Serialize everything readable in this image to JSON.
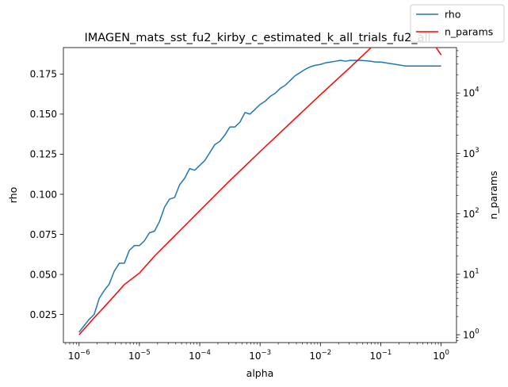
{
  "chart_data": {
    "type": "line",
    "title": "IMAGEN_mats_sst_fu2_kirby_c_estimated_k_all_trials_fu2_all",
    "xlabel": "alpha",
    "ylabel_left": "rho",
    "ylabel_right": "n_params",
    "x_scale": "log",
    "xlim": [
      5.5e-07,
      1.8
    ],
    "ylim_left": [
      0.0075,
      0.1915
    ],
    "ylim_right_log10": [
      -0.13,
      4.75
    ],
    "x_ticks": [
      {
        "value": 1e-06,
        "base": "10",
        "exp": "−6"
      },
      {
        "value": 1e-05,
        "base": "10",
        "exp": "−5"
      },
      {
        "value": 0.0001,
        "base": "10",
        "exp": "−4"
      },
      {
        "value": 0.001,
        "base": "10",
        "exp": "−3"
      },
      {
        "value": 0.01,
        "base": "10",
        "exp": "−2"
      },
      {
        "value": 0.1,
        "base": "10",
        "exp": "−1"
      },
      {
        "value": 1,
        "base": "10",
        "exp": "0"
      }
    ],
    "y_left_ticks": [
      {
        "value": 0.025,
        "label": "0.025"
      },
      {
        "value": 0.05,
        "label": "0.050"
      },
      {
        "value": 0.075,
        "label": "0.075"
      },
      {
        "value": 0.1,
        "label": "0.100"
      },
      {
        "value": 0.125,
        "label": "0.125"
      },
      {
        "value": 0.15,
        "label": "0.150"
      },
      {
        "value": 0.175,
        "label": "0.175"
      }
    ],
    "y_right_ticks": [
      {
        "value": 1,
        "base": "10",
        "exp": "0"
      },
      {
        "value": 10,
        "base": "10",
        "exp": "1"
      },
      {
        "value": 100,
        "base": "10",
        "exp": "2"
      },
      {
        "value": 1000,
        "base": "10",
        "exp": "3"
      },
      {
        "value": 10000,
        "base": "10",
        "exp": "4"
      }
    ],
    "legend": {
      "placement": "top-right"
    },
    "series": [
      {
        "name": "rho",
        "color": "#1f77b4",
        "axis": "left",
        "log10_x": [
          -6.0,
          -5.917,
          -5.833,
          -5.75,
          -5.667,
          -5.583,
          -5.5,
          -5.417,
          -5.333,
          -5.25,
          -5.167,
          -5.083,
          -5.0,
          -4.917,
          -4.833,
          -4.75,
          -4.667,
          -4.583,
          -4.5,
          -4.417,
          -4.333,
          -4.25,
          -4.167,
          -4.083,
          -4.0,
          -3.917,
          -3.833,
          -3.75,
          -3.667,
          -3.583,
          -3.5,
          -3.417,
          -3.333,
          -3.25,
          -3.167,
          -3.083,
          -3.0,
          -2.917,
          -2.833,
          -2.75,
          -2.667,
          -2.583,
          -2.5,
          -2.417,
          -2.333,
          -2.25,
          -2.167,
          -2.083,
          -2.0,
          -1.917,
          -1.833,
          -1.75,
          -1.667,
          -1.583,
          -1.5,
          -1.417,
          -1.333,
          -1.25,
          -1.167,
          -1.083,
          -1.0,
          -0.917,
          -0.833,
          -0.75,
          -0.667,
          -0.583,
          -0.5,
          -0.417,
          -0.333,
          -0.25,
          -0.167,
          -0.083,
          0.0
        ],
        "values": [
          0.014,
          0.018,
          0.022,
          0.025,
          0.035,
          0.04,
          0.044,
          0.052,
          0.057,
          0.057,
          0.065,
          0.068,
          0.068,
          0.071,
          0.076,
          0.077,
          0.083,
          0.092,
          0.097,
          0.098,
          0.106,
          0.11,
          0.116,
          0.115,
          0.118,
          0.121,
          0.126,
          0.131,
          0.133,
          0.137,
          0.142,
          0.142,
          0.145,
          0.151,
          0.15,
          0.153,
          0.156,
          0.158,
          0.161,
          0.163,
          0.166,
          0.168,
          0.171,
          0.174,
          0.176,
          0.178,
          0.1795,
          0.1805,
          0.181,
          0.182,
          0.1825,
          0.183,
          0.1835,
          0.183,
          0.1835,
          0.1835,
          0.1835,
          0.1833,
          0.183,
          0.1825,
          0.1825,
          0.182,
          0.1815,
          0.181,
          0.1805,
          0.18,
          0.18,
          0.18,
          0.18,
          0.18,
          0.18,
          0.18,
          0.18
        ]
      },
      {
        "name": "n_params",
        "color": "#ff0000",
        "axis": "right",
        "log10_x": [
          -6.0,
          -5.75,
          -5.5,
          -5.25,
          -5.0,
          -4.75,
          -4.5,
          -4.25,
          -4.0,
          -3.5,
          -3.0,
          -2.5,
          -2.0,
          -1.5,
          -1.0,
          -0.5,
          0.0
        ],
        "log10_values": [
          0.0,
          0.28,
          0.55,
          0.83,
          1.02,
          1.3,
          1.55,
          1.8,
          2.05,
          2.55,
          3.03,
          3.5,
          3.97,
          4.43,
          4.9,
          5.37,
          4.63
        ]
      }
    ]
  }
}
